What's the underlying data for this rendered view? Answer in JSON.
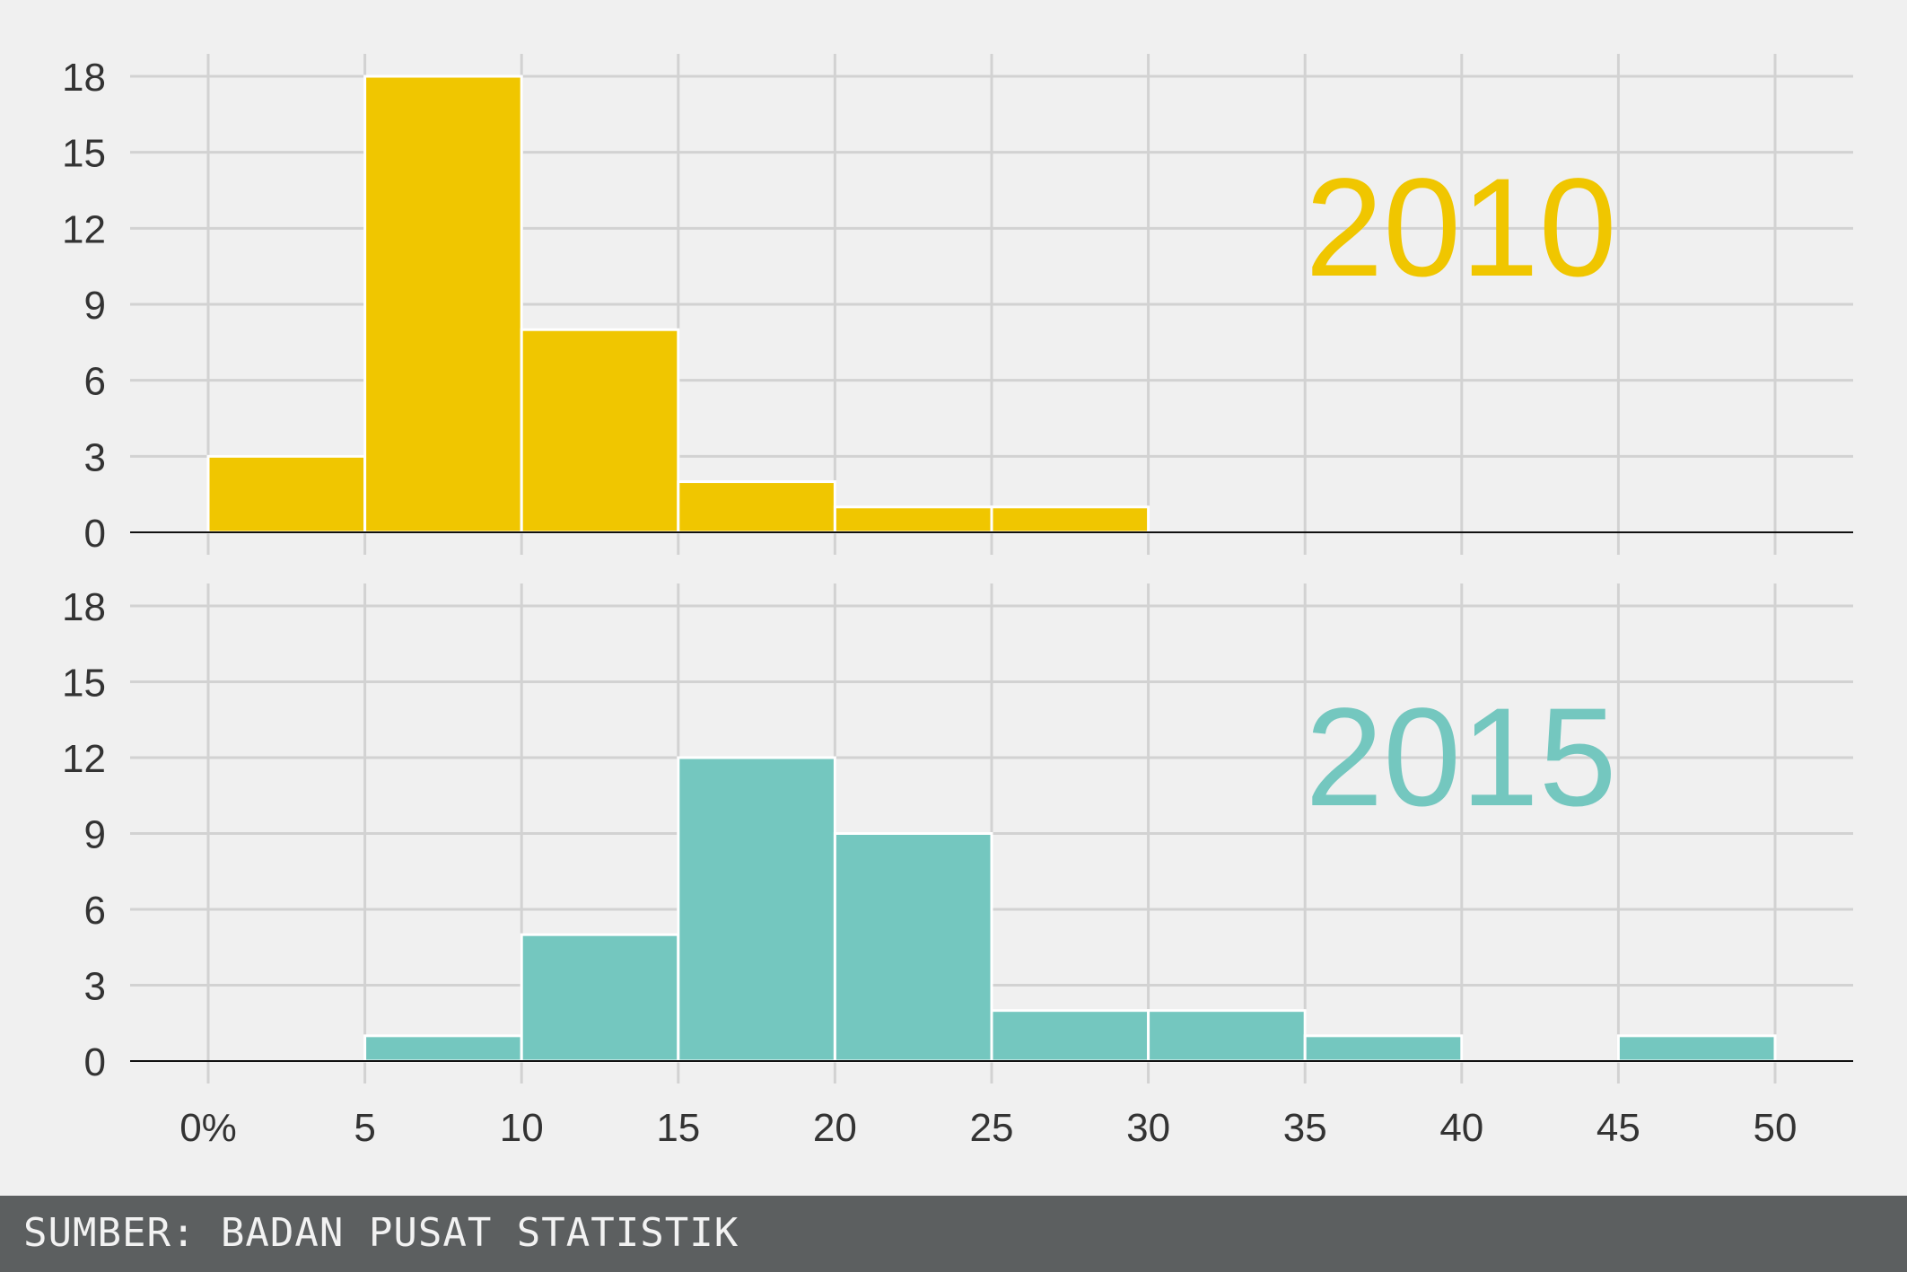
{
  "chart_data": [
    {
      "type": "bar",
      "label": "2010",
      "color": "#f0c600",
      "bin_edges": [
        0,
        5,
        10,
        15,
        20,
        25,
        30,
        35,
        40,
        45,
        50
      ],
      "values": [
        3,
        18,
        8,
        2,
        1,
        1,
        0,
        0,
        0,
        0
      ],
      "ylim": [
        0,
        18
      ],
      "yticks": [
        "0",
        "3",
        "6",
        "9",
        "12",
        "15",
        "18"
      ],
      "grid": true
    },
    {
      "type": "bar",
      "label": "2015",
      "color": "#74c7bf",
      "bin_edges": [
        0,
        5,
        10,
        15,
        20,
        25,
        30,
        35,
        40,
        45,
        50
      ],
      "values": [
        0,
        1,
        5,
        12,
        9,
        2,
        2,
        1,
        0,
        1
      ],
      "ylim": [
        0,
        18
      ],
      "yticks": [
        "0",
        "3",
        "6",
        "9",
        "12",
        "15",
        "18"
      ],
      "grid": true
    }
  ],
  "x_axis": {
    "tick_values": [
      0,
      5,
      10,
      15,
      20,
      25,
      30,
      35,
      40,
      45,
      50
    ],
    "tick_labels": [
      "0%",
      "5",
      "10",
      "15",
      "20",
      "25",
      "30",
      "35",
      "40",
      "45",
      "50"
    ]
  },
  "footer": {
    "source": "SUMBER: BADAN PUSAT STATISTIK"
  }
}
